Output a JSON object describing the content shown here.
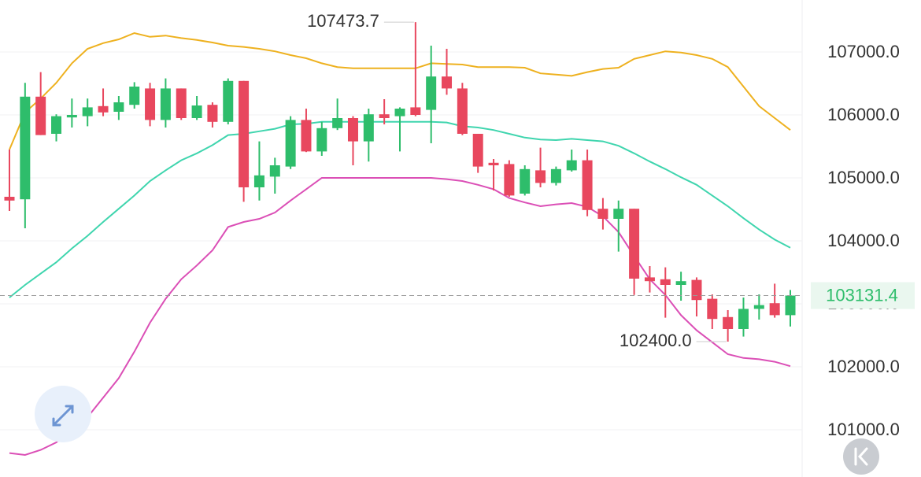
{
  "chart_data": {
    "type": "candlestick",
    "ylim": [
      100250,
      107825
    ],
    "yticks": [
      {
        "value": 101000,
        "label": "101000.0"
      },
      {
        "value": 102000,
        "label": "102000.0"
      },
      {
        "value": 103000,
        "label": "103000.0"
      },
      {
        "value": 104000,
        "label": "104000.0"
      },
      {
        "value": 105000,
        "label": "105000.0"
      },
      {
        "value": 106000,
        "label": "106000.0"
      },
      {
        "value": 107000,
        "label": "107000.0"
      }
    ],
    "grid": true,
    "up_color": "#2ebd6b",
    "down_color": "#e8475e",
    "open": [
      104700,
      104660,
      106290,
      105700,
      105960,
      105980,
      106140,
      106050,
      106160,
      106420,
      105920,
      106420,
      105950,
      106160,
      105890,
      106540,
      104850,
      105020,
      105180,
      105920,
      105420,
      105790,
      105950,
      105580,
      106010,
      105980,
      106120,
      106080,
      106610,
      106420,
      105700,
      105240,
      105220,
      104750,
      105120,
      104920,
      105120,
      105280,
      104510,
      104350,
      104510,
      103420,
      103390,
      103300,
      103380,
      103080,
      102790,
      102600,
      102920,
      103010,
      102820
    ],
    "high": [
      105450,
      106510,
      106680,
      106010,
      106260,
      106260,
      106420,
      106300,
      106520,
      106510,
      106580,
      106420,
      106300,
      106200,
      106580,
      106540,
      105580,
      105320,
      105980,
      106100,
      105890,
      106260,
      105980,
      106100,
      106250,
      106120,
      107473.7,
      107100,
      107050,
      106510,
      105700,
      105300,
      105280,
      105200,
      105480,
      105180,
      105450,
      105450,
      104680,
      104640,
      104510,
      103600,
      103580,
      103510,
      103420,
      103150,
      102900,
      103100,
      103150,
      103320,
      103220
    ],
    "low": [
      104475,
      104200,
      105680,
      105580,
      105800,
      105820,
      105980,
      105920,
      106100,
      105820,
      105800,
      105920,
      105920,
      105800,
      105850,
      104620,
      104640,
      104750,
      105140,
      105410,
      105350,
      105760,
      105200,
      105260,
      105850,
      105420,
      105980,
      105550,
      106320,
      105680,
      105080,
      104800,
      104700,
      104720,
      104850,
      104880,
      105100,
      104390,
      104180,
      103830,
      103140,
      103180,
      102780,
      103050,
      102800,
      102600,
      102400,
      102480,
      102750,
      102780,
      102640
    ],
    "close": [
      104640,
      106290,
      105680,
      105980,
      106000,
      106120,
      106040,
      106200,
      106450,
      105920,
      106420,
      105950,
      106150,
      105890,
      106540,
      104850,
      105040,
      105200,
      105920,
      105420,
      105790,
      105950,
      105580,
      106010,
      105950,
      106100,
      106000,
      106610,
      106420,
      105700,
      105180,
      105200,
      104720,
      105140,
      104920,
      105140,
      105280,
      104490,
      104350,
      104510,
      103400,
      103360,
      103300,
      103360,
      103060,
      102760,
      102600,
      102920,
      102980,
      102820,
      103131.4
    ],
    "bands": [
      {
        "color": "#eeb11f",
        "values": [
          105450,
          106040,
          106260,
          106510,
          106820,
          107050,
          107140,
          107200,
          107300,
          107240,
          107260,
          107220,
          107190,
          107150,
          107100,
          107080,
          107050,
          107010,
          106950,
          106900,
          106820,
          106760,
          106740,
          106740,
          106740,
          106740,
          106740,
          106820,
          106810,
          106800,
          106760,
          106760,
          106760,
          106750,
          106660,
          106640,
          106620,
          106680,
          106730,
          106750,
          106890,
          106950,
          107010,
          106990,
          106950,
          106890,
          106760,
          106450,
          106140,
          105950,
          105760
        ]
      },
      {
        "color": "#3fd5ae",
        "values": [
          103100,
          103300,
          103480,
          103660,
          103880,
          104080,
          104300,
          104510,
          104720,
          104950,
          105120,
          105280,
          105390,
          105520,
          105680,
          105700,
          105740,
          105780,
          105850,
          105860,
          105890,
          105890,
          105890,
          105890,
          105890,
          105890,
          105890,
          105890,
          105880,
          105820,
          105800,
          105760,
          105700,
          105640,
          105610,
          105600,
          105620,
          105600,
          105580,
          105510,
          105390,
          105260,
          105140,
          105010,
          104890,
          104720,
          104550,
          104360,
          104180,
          104020,
          103890
        ]
      },
      {
        "color": "#db4fb6",
        "values": [
          100630,
          100600,
          100680,
          100800,
          101000,
          101200,
          101510,
          101820,
          102240,
          102700,
          103080,
          103390,
          103610,
          103850,
          104220,
          104300,
          104350,
          104450,
          104640,
          104820,
          105000,
          105000,
          105000,
          105000,
          105000,
          105000,
          105000,
          105000,
          104980,
          104950,
          104890,
          104820,
          104680,
          104610,
          104550,
          104580,
          104600,
          104540,
          104390,
          104140,
          103760,
          103390,
          103140,
          102820,
          102580,
          102390,
          102200,
          102140,
          102120,
          102080,
          102010
        ]
      }
    ],
    "high_label": {
      "value": 107473.7,
      "label": "107473.7"
    },
    "low_label": {
      "value": 102400,
      "label": "102400.0"
    },
    "last_price": {
      "value": 103131.4,
      "label": "103131.4"
    }
  }
}
